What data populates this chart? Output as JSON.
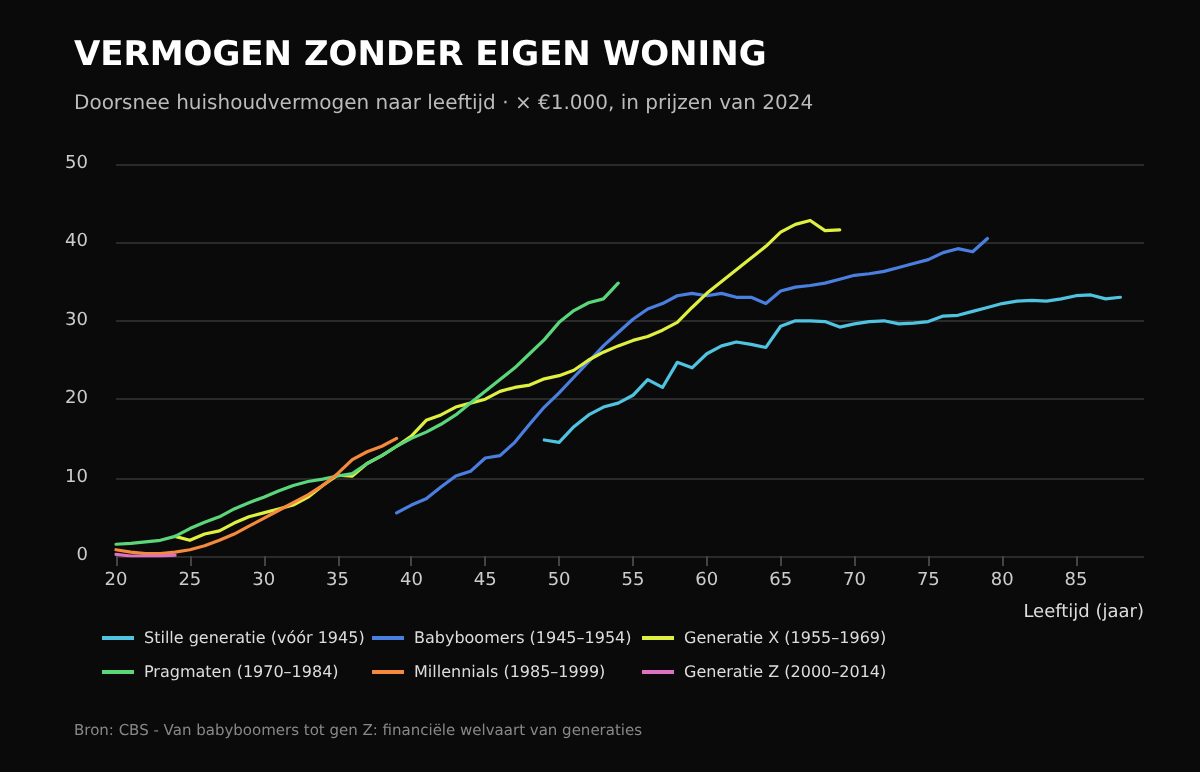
{
  "chart_data": {
    "type": "line",
    "title": "VERMOGEN ZONDER EIGEN WONING",
    "subtitle": "Doorsnee huishoudvermogen naar leeftijd · × €1.000, in prijzen van 2024",
    "xlabel": "Leeftijd (jaar)",
    "annotations": [
      "Bron: CBS - Van babyboomers tot gen Z: financiële welvaart van generaties"
    ],
    "xlim": [
      20,
      89.6
    ],
    "xticks": [
      20,
      25,
      30,
      35,
      40,
      45,
      50,
      55,
      60,
      65,
      70,
      75,
      80,
      85
    ],
    "ylim": [
      0,
      50
    ],
    "yticks": [
      0,
      10,
      20,
      30,
      40,
      50
    ],
    "grid": "y",
    "legend": "bottom",
    "marker": "none",
    "line_style": "solid",
    "series": [
      {
        "name": "Stille generatie (vóór 1945)",
        "color": "#4fc3e0",
        "x": [
          49,
          50,
          51,
          52,
          53,
          54,
          55,
          56,
          57,
          58,
          59,
          60,
          61,
          62,
          63,
          64,
          65,
          66,
          67,
          68,
          69,
          70,
          71,
          72,
          73,
          74,
          75,
          76,
          77,
          78,
          79,
          80,
          81,
          82,
          83,
          84,
          85,
          86,
          87,
          88
        ],
        "values": [
          14.8,
          14.5,
          16.5,
          18,
          19,
          19.5,
          20.5,
          22.5,
          21.5,
          24.7,
          24,
          25.8,
          26.8,
          27.3,
          27,
          26.6,
          29.3,
          30,
          30,
          29.9,
          29.2,
          29.6,
          29.9,
          30,
          29.6,
          29.7,
          29.9,
          30.6,
          30.7,
          31.2,
          31.7,
          32.2,
          32.5,
          32.6,
          32.5,
          32.8,
          33.2,
          33.3,
          32.8,
          33
        ]
      },
      {
        "name": "Babyboomers (1945–1954)",
        "color": "#4a7fe0",
        "x": [
          39,
          40,
          41,
          42,
          43,
          44,
          45,
          46,
          47,
          48,
          49,
          50,
          51,
          52,
          53,
          54,
          55,
          56,
          57,
          58,
          59,
          60,
          61,
          62,
          63,
          64,
          65,
          66,
          67,
          68,
          69,
          70,
          71,
          72,
          73,
          74,
          75,
          76,
          77,
          78,
          79
        ],
        "values": [
          5.5,
          6.5,
          7.3,
          8.8,
          10.2,
          10.8,
          12.5,
          12.8,
          14.5,
          16.8,
          19,
          20.8,
          22.8,
          24.8,
          26.8,
          28.5,
          30.2,
          31.5,
          32.2,
          33.2,
          33.5,
          33.2,
          33.5,
          33,
          33,
          32.2,
          33.8,
          34.3,
          34.5,
          34.8,
          35.3,
          35.8,
          36,
          36.3,
          36.8,
          37.3,
          37.8,
          38.7,
          39.2,
          38.8,
          40.5
        ]
      },
      {
        "name": "Generatie X (1955–1969)",
        "color": "#e0f040",
        "x": [
          24,
          25,
          26,
          27,
          28,
          29,
          30,
          31,
          32,
          33,
          34,
          35,
          36,
          37,
          38,
          39,
          40,
          41,
          42,
          43,
          44,
          45,
          46,
          47,
          48,
          49,
          50,
          51,
          52,
          53,
          54,
          55,
          56,
          57,
          58,
          59,
          60,
          61,
          62,
          63,
          64,
          65,
          66,
          67,
          68,
          69
        ],
        "values": [
          2.5,
          2,
          2.8,
          3.2,
          4.2,
          5,
          5.5,
          6,
          6.5,
          7.5,
          9,
          10.3,
          10.2,
          11.8,
          12.8,
          14,
          15.3,
          17.3,
          18,
          19,
          19.5,
          20,
          21,
          21.5,
          21.8,
          22.6,
          23,
          23.7,
          25,
          26,
          26.8,
          27.5,
          28,
          28.8,
          29.8,
          31.7,
          33.5,
          35,
          36.5,
          38,
          39.5,
          41.3,
          42.3,
          42.8,
          41.5,
          41.6
        ]
      },
      {
        "name": "Pragmaten (1970–1984)",
        "color": "#5cd67a",
        "x": [
          20,
          21,
          22,
          23,
          24,
          25,
          26,
          27,
          28,
          29,
          30,
          31,
          32,
          33,
          34,
          35,
          36,
          37,
          38,
          39,
          40,
          41,
          42,
          43,
          44,
          45,
          46,
          47,
          48,
          49,
          50,
          51,
          52,
          53,
          54
        ],
        "values": [
          1.5,
          1.6,
          1.8,
          2,
          2.5,
          3.5,
          4.3,
          5,
          6,
          6.8,
          7.5,
          8.3,
          9,
          9.5,
          9.8,
          10.2,
          10.5,
          11.8,
          12.8,
          14,
          15,
          15.8,
          16.8,
          18,
          19.5,
          21,
          22.5,
          24,
          25.8,
          27.6,
          29.8,
          31.3,
          32.3,
          32.8,
          34.8
        ]
      },
      {
        "name": "Millennials (1985–1999)",
        "color": "#f58a3c",
        "x": [
          20,
          21,
          22,
          23,
          24,
          25,
          26,
          27,
          28,
          29,
          30,
          31,
          32,
          33,
          34,
          35,
          36,
          37,
          38,
          39
        ],
        "values": [
          0.8,
          0.5,
          0.3,
          0.3,
          0.5,
          0.8,
          1.3,
          2,
          2.8,
          3.8,
          4.8,
          5.8,
          6.8,
          7.8,
          9,
          10.5,
          12.3,
          13.3,
          14,
          15
        ]
      },
      {
        "name": "Generatie Z (2000–2014)",
        "color": "#e070c0",
        "x": [
          20,
          21,
          22,
          23,
          24
        ],
        "values": [
          0.2,
          0,
          0,
          0,
          0.1
        ]
      }
    ]
  }
}
